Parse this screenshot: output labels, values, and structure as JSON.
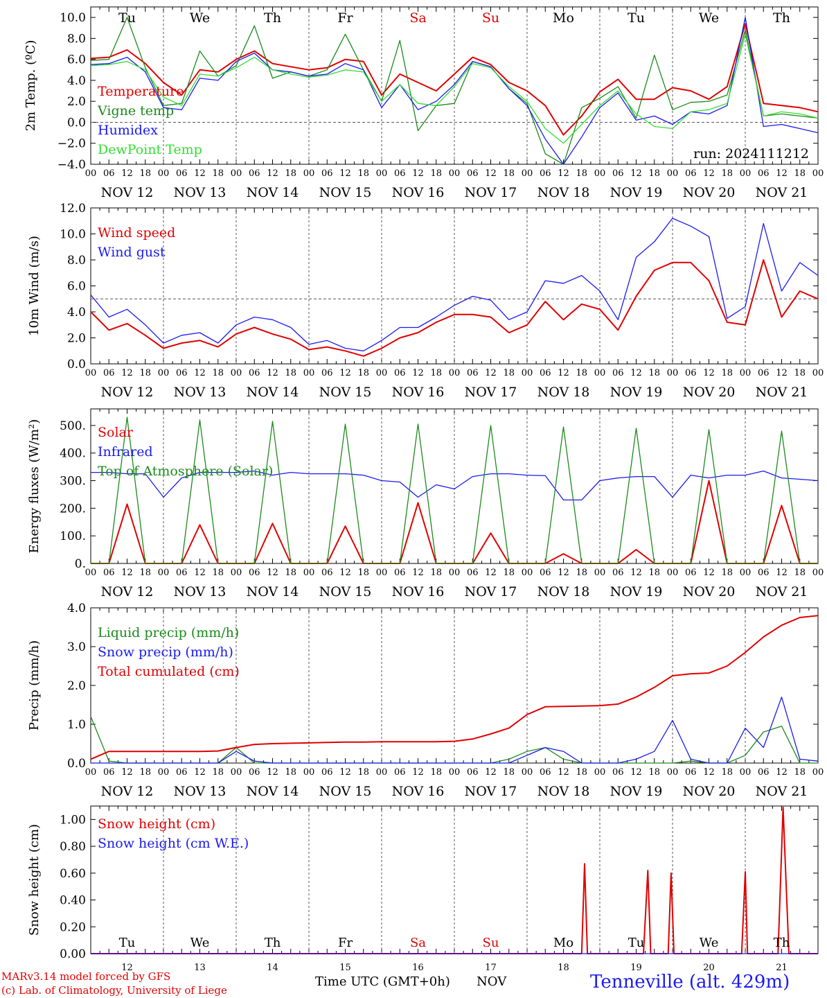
{
  "days": [
    "Tu",
    "We",
    "Th",
    "Fr",
    "Sa",
    "Su",
    "Mo",
    "Tu",
    "We",
    "Th"
  ],
  "weekend_days": [
    4,
    5
  ],
  "date_labels": [
    "NOV 12",
    "NOV 13",
    "NOV 14",
    "NOV 15",
    "NOV 16",
    "NOV 17",
    "NOV 18",
    "NOV 19",
    "NOV 20",
    "NOV 21"
  ],
  "bottom_day_numbers": [
    "12",
    "13",
    "14",
    "15",
    "16",
    "17",
    "18",
    "19",
    "20",
    "21"
  ],
  "hour_labels": [
    "00",
    "06",
    "12",
    "18"
  ],
  "run_label": "run: 2024111212",
  "footer": {
    "model": "MARv3.14 model forced by GFS",
    "copyright": "(c) Lab. of Climatology, University of Liege",
    "xlabel": "Time UTC (GMT+0h)",
    "month": "NOV",
    "station": "Tenneville (alt. 429m)"
  },
  "colors": {
    "red": "#e00000",
    "green": "#1a8a1a",
    "blue": "#1a1aee",
    "lightgreen": "#33dd33",
    "dash": "#555555"
  },
  "chart_data": [
    {
      "type": "line",
      "ylabel": "2m Temp. (ºC)",
      "ylim": [
        -4,
        11
      ],
      "yticks": [
        -4,
        -2,
        0,
        2,
        4,
        6,
        8,
        10
      ],
      "tick_labels": [
        "−4.0",
        "−2.0",
        "0.0",
        "2.0",
        "4.0",
        "6.0",
        "8.0",
        "10.0"
      ],
      "reference_line": 0,
      "x_days": [
        0,
        0.25,
        0.5,
        0.75,
        1,
        1.25,
        1.5,
        1.75,
        2,
        2.25,
        2.5,
        2.75,
        3,
        3.25,
        3.5,
        3.75,
        4,
        4.25,
        4.5,
        4.75,
        5,
        5.25,
        5.5,
        5.75,
        6,
        6.25,
        6.5,
        6.75,
        7,
        7.25,
        7.5,
        7.75,
        8,
        8.25,
        8.5,
        8.75,
        9,
        9.25,
        9.5,
        9.75,
        10
      ],
      "series": [
        {
          "name": "Temperature",
          "color": "red",
          "values": [
            6.1,
            6.2,
            6.9,
            5.6,
            3.8,
            2.6,
            5.0,
            4.8,
            6.0,
            6.8,
            5.6,
            5.3,
            5.0,
            5.2,
            6.0,
            5.8,
            2.6,
            4.6,
            3.8,
            3.0,
            4.6,
            6.2,
            5.5,
            3.8,
            3.0,
            1.6,
            -1.2,
            0.6,
            2.9,
            4.1,
            2.2,
            2.2,
            3.3,
            3.0,
            2.2,
            3.4,
            9.4,
            1.8,
            1.6,
            1.4,
            1.0
          ]
        },
        {
          "name": "Vigne temp",
          "color": "green",
          "values": [
            5.9,
            6.0,
            10.0,
            5.2,
            1.6,
            1.8,
            6.8,
            4.4,
            5.4,
            9.2,
            4.2,
            4.8,
            4.4,
            5.0,
            8.4,
            5.0,
            2.0,
            7.8,
            -0.8,
            1.6,
            1.8,
            5.8,
            5.3,
            3.2,
            1.8,
            -3.0,
            -4.0,
            1.4,
            2.3,
            3.4,
            0.4,
            6.4,
            1.2,
            1.9,
            2.0,
            2.6,
            8.8,
            0.6,
            0.8,
            0.6,
            0.4
          ]
        },
        {
          "name": "Humidex",
          "color": "blue",
          "values": [
            5.5,
            5.6,
            6.2,
            4.8,
            1.4,
            1.2,
            4.2,
            4.0,
            5.8,
            6.6,
            5.0,
            4.8,
            4.4,
            4.6,
            5.6,
            5.0,
            1.4,
            3.6,
            1.2,
            2.0,
            3.6,
            5.8,
            5.3,
            3.2,
            1.6,
            -1.6,
            -4.0,
            -1.4,
            1.4,
            2.8,
            0.2,
            0.6,
            -0.2,
            1.0,
            0.8,
            1.6,
            10.0,
            -0.4,
            -0.2,
            -0.6,
            -1.0
          ]
        },
        {
          "name": "DewPoint Temp",
          "color": "lightgreen",
          "values": [
            5.4,
            5.5,
            5.8,
            5.0,
            2.4,
            1.6,
            4.6,
            4.4,
            5.2,
            6.2,
            5.0,
            4.6,
            4.3,
            4.5,
            5.0,
            4.8,
            2.0,
            3.6,
            1.8,
            1.6,
            3.4,
            5.6,
            5.2,
            3.4,
            2.0,
            -0.6,
            -2.0,
            -0.2,
            1.6,
            3.0,
            0.8,
            -0.4,
            -0.6,
            1.0,
            1.2,
            1.8,
            8.4,
            0.6,
            1.0,
            0.8,
            0.4
          ]
        }
      ]
    },
    {
      "type": "line",
      "ylabel": "10m Wind (m/s)",
      "ylim": [
        0,
        12
      ],
      "yticks": [
        0,
        2,
        4,
        6,
        8,
        10,
        12
      ],
      "tick_labels": [
        "0.0",
        "2.0",
        "4.0",
        "6.0",
        "8.0",
        "10.0",
        "12.0"
      ],
      "reference_line": 5,
      "x_days": [
        0,
        0.25,
        0.5,
        0.75,
        1,
        1.25,
        1.5,
        1.75,
        2,
        2.25,
        2.5,
        2.75,
        3,
        3.25,
        3.5,
        3.75,
        4,
        4.25,
        4.5,
        4.75,
        5,
        5.25,
        5.5,
        5.75,
        6,
        6.25,
        6.5,
        6.75,
        7,
        7.25,
        7.5,
        7.75,
        8,
        8.25,
        8.5,
        8.75,
        9,
        9.25,
        9.5,
        9.75,
        10
      ],
      "series": [
        {
          "name": "Wind speed",
          "color": "red",
          "values": [
            4.0,
            2.6,
            3.1,
            2.2,
            1.2,
            1.6,
            1.8,
            1.3,
            2.3,
            2.8,
            2.3,
            1.9,
            1.1,
            1.3,
            1.0,
            0.6,
            1.2,
            2.0,
            2.4,
            3.2,
            3.8,
            3.8,
            3.6,
            2.4,
            3.0,
            4.8,
            3.4,
            4.6,
            4.2,
            2.6,
            5.2,
            7.2,
            7.8,
            7.8,
            6.4,
            3.2,
            3.0,
            8.0,
            3.6,
            5.6,
            5.0
          ]
        },
        {
          "name": "Wind gust",
          "color": "blue",
          "values": [
            5.3,
            3.6,
            4.2,
            3.0,
            1.6,
            2.2,
            2.4,
            1.6,
            3.0,
            3.6,
            3.4,
            2.8,
            1.5,
            1.8,
            1.2,
            1.0,
            1.8,
            2.8,
            2.8,
            3.6,
            4.5,
            5.2,
            4.9,
            3.4,
            4.0,
            6.4,
            6.2,
            6.8,
            5.6,
            3.4,
            8.2,
            9.4,
            11.2,
            10.6,
            9.8,
            3.5,
            4.4,
            10.8,
            5.6,
            7.8,
            6.8
          ]
        }
      ]
    },
    {
      "type": "line",
      "ylabel": "Energy fluxes (W/m²)",
      "ylim": [
        0,
        560
      ],
      "yticks": [
        0,
        100,
        200,
        300,
        400,
        500
      ],
      "tick_labels": [
        "0.",
        "100.",
        "200.",
        "300.",
        "400.",
        "500."
      ],
      "x_days": [
        0,
        0.25,
        0.5,
        0.75,
        1,
        1.25,
        1.5,
        1.75,
        2,
        2.25,
        2.5,
        2.75,
        3,
        3.25,
        3.5,
        3.75,
        4,
        4.25,
        4.5,
        4.75,
        5,
        5.25,
        5.5,
        5.75,
        6,
        6.25,
        6.5,
        6.75,
        7,
        7.25,
        7.5,
        7.75,
        8,
        8.25,
        8.5,
        8.75,
        9,
        9.25,
        9.5,
        9.75,
        10
      ],
      "series": [
        {
          "name": "Solar",
          "color": "red",
          "values": [
            0,
            0,
            215,
            0,
            0,
            0,
            140,
            0,
            0,
            0,
            145,
            0,
            0,
            0,
            135,
            0,
            0,
            0,
            220,
            0,
            0,
            0,
            110,
            0,
            0,
            0,
            35,
            0,
            0,
            0,
            50,
            0,
            0,
            0,
            300,
            0,
            0,
            0,
            210,
            0,
            0
          ]
        },
        {
          "name": "Infrared",
          "color": "blue",
          "values": [
            330,
            330,
            325,
            325,
            240,
            310,
            330,
            330,
            330,
            335,
            320,
            330,
            325,
            325,
            325,
            320,
            300,
            295,
            240,
            285,
            270,
            315,
            325,
            325,
            320,
            318,
            230,
            230,
            300,
            310,
            315,
            315,
            240,
            320,
            310,
            320,
            320,
            335,
            310,
            305,
            300
          ]
        },
        {
          "name": "Top of Atmosphere (Solar)",
          "color": "green",
          "values": [
            0,
            0,
            530,
            0,
            0,
            0,
            520,
            0,
            0,
            0,
            515,
            0,
            0,
            0,
            505,
            0,
            0,
            0,
            505,
            0,
            0,
            0,
            500,
            0,
            0,
            0,
            495,
            0,
            0,
            0,
            490,
            0,
            0,
            0,
            485,
            0,
            0,
            0,
            480,
            0,
            0
          ]
        }
      ]
    },
    {
      "type": "line",
      "ylabel": "Precip (mm/h)",
      "ylim": [
        0,
        4
      ],
      "yticks": [
        0,
        1,
        2,
        3,
        4
      ],
      "tick_labels": [
        "0.0",
        "1.0",
        "2.0",
        "3.0",
        "4.0"
      ],
      "x_days": [
        0,
        0.25,
        0.5,
        0.75,
        1,
        1.25,
        1.5,
        1.75,
        2,
        2.25,
        2.5,
        2.75,
        3,
        3.25,
        3.5,
        3.75,
        4,
        4.25,
        4.5,
        4.75,
        5,
        5.25,
        5.5,
        5.75,
        6,
        6.25,
        6.5,
        6.75,
        7,
        7.25,
        7.5,
        7.75,
        8,
        8.25,
        8.5,
        8.75,
        9,
        9.25,
        9.5,
        9.75,
        10
      ],
      "series": [
        {
          "name": "Liquid precip (mm/h)",
          "color": "green",
          "values": [
            1.2,
            0.05,
            0,
            0,
            0,
            0,
            0,
            0,
            0.4,
            0,
            0,
            0,
            0,
            0,
            0,
            0,
            0,
            0,
            0,
            0,
            0,
            0,
            0,
            0.1,
            0.3,
            0.4,
            0.1,
            0,
            0,
            0,
            0,
            0,
            0,
            0.05,
            0,
            0,
            0.2,
            0.8,
            0.95,
            0,
            0
          ]
        },
        {
          "name": "Snow precip (mm/h)",
          "color": "blue",
          "values": [
            0,
            0,
            0,
            0,
            0,
            0,
            0,
            0,
            0.3,
            0.05,
            0,
            0,
            0,
            0,
            0,
            0,
            0,
            0,
            0,
            0,
            0,
            0,
            0,
            0,
            0.2,
            0.4,
            0.3,
            0,
            0,
            0,
            0.1,
            0.3,
            1.1,
            0.1,
            0,
            0,
            0.9,
            0.4,
            1.7,
            0.1,
            0.05
          ]
        },
        {
          "name": "Total cumulated (cm)",
          "color": "red",
          "values": [
            0.1,
            0.3,
            0.3,
            0.3,
            0.3,
            0.3,
            0.3,
            0.31,
            0.4,
            0.48,
            0.5,
            0.51,
            0.52,
            0.53,
            0.54,
            0.54,
            0.55,
            0.55,
            0.55,
            0.55,
            0.56,
            0.62,
            0.75,
            0.9,
            1.25,
            1.45,
            1.46,
            1.47,
            1.48,
            1.52,
            1.7,
            1.95,
            2.25,
            2.3,
            2.32,
            2.5,
            2.85,
            3.25,
            3.55,
            3.75,
            3.8
          ]
        }
      ]
    },
    {
      "type": "line",
      "ylabel": "Snow height (cm)",
      "ylim": [
        0,
        1.1
      ],
      "yticks": [
        0,
        0.2,
        0.4,
        0.6,
        0.8,
        1.0
      ],
      "tick_labels": [
        "0.00",
        "0.20",
        "0.40",
        "0.60",
        "0.80",
        "1.00"
      ],
      "series": [
        {
          "name": "Snow height (cm)",
          "color": "red",
          "x_days": [
            0,
            6.75,
            6.79,
            6.83,
            7.6,
            7.66,
            7.7,
            7.94,
            7.98,
            8.02,
            8.95,
            9.0,
            9.03,
            9.45,
            9.52,
            9.6,
            10
          ],
          "values": [
            0,
            0,
            0.67,
            0,
            0,
            0.62,
            0,
            0,
            0.6,
            0,
            0,
            0.61,
            0,
            0,
            1.09,
            0,
            0
          ]
        },
        {
          "name": "Snow height (cm W.E.)",
          "color": "blue",
          "x_days": [
            0,
            10
          ],
          "values": [
            0,
            0
          ]
        }
      ]
    }
  ]
}
